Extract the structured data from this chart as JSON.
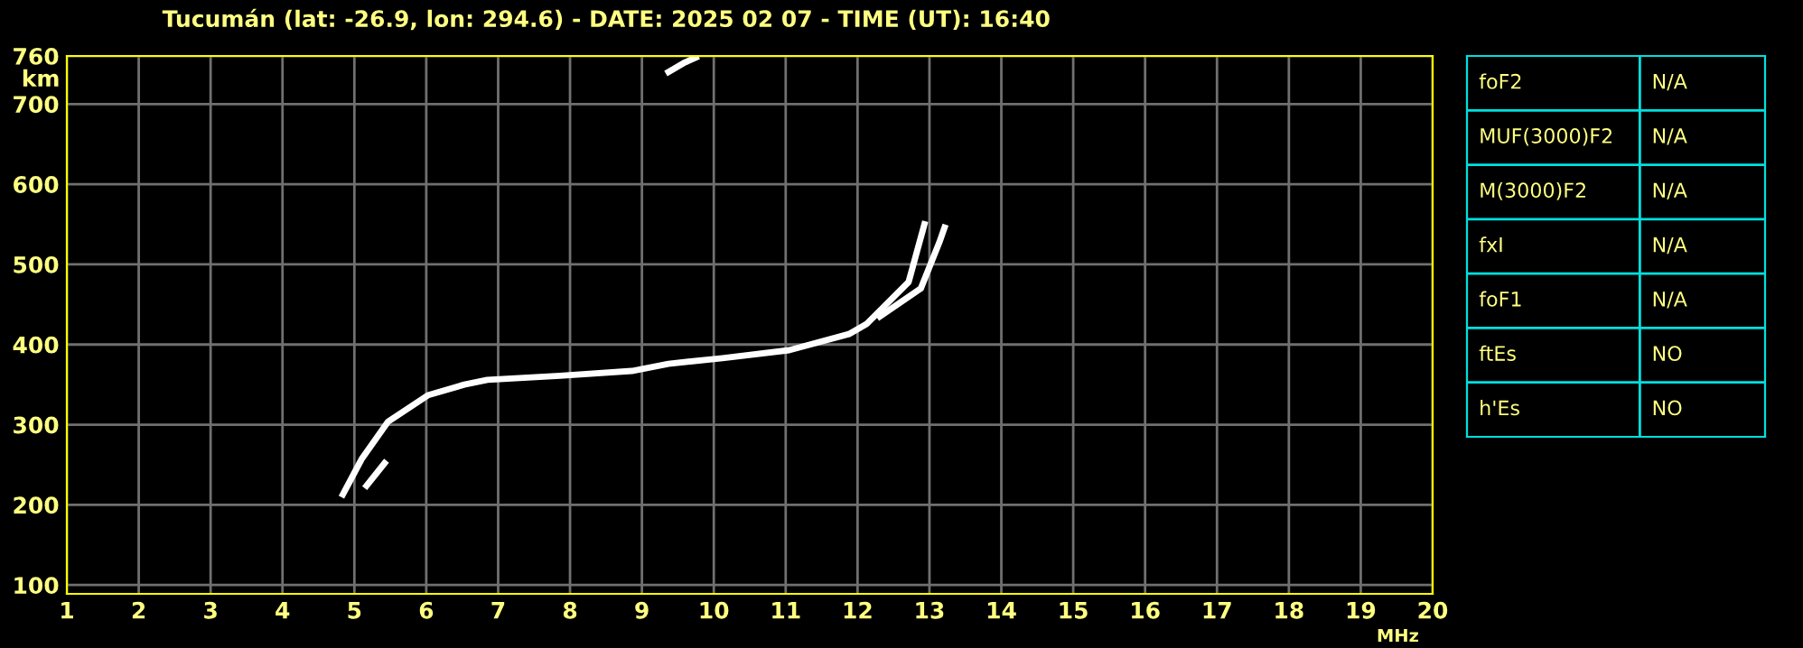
{
  "chart_data": [
    {
      "type": "line",
      "title": "Tucumán (lat: -26.9, lon: 294.6) - DATE: 2025 02 07 - TIME (UT): 16:40",
      "xlabel": "MHz",
      "ylabel": "km",
      "series": [
        {
          "color": "#ffffff",
          "x": [
            4.84,
            5.1,
            5.47,
            6.03,
            6.53,
            6.85,
            7.86,
            8.86,
            9.37,
            10.12,
            11.05,
            11.88,
            12.13,
            12.71,
            12.93
          ],
          "values": [
            213,
            257,
            304,
            337,
            350,
            356,
            361,
            367,
            376,
            383,
            393,
            413,
            426,
            478,
            550
          ]
        },
        {
          "color": "#ffffff",
          "x": [
            12.31,
            12.88,
            13.14,
            13.21
          ],
          "values": [
            435,
            470,
            528,
            546
          ]
        },
        {
          "color": "#ffffff",
          "x": [
            5.17,
            5.42
          ],
          "values": [
            224,
            252
          ]
        },
        {
          "color": "#ffffff",
          "x": [
            9.37,
            9.6,
            9.75
          ],
          "values": [
            740,
            752,
            758
          ]
        }
      ],
      "xlim": [
        1,
        20
      ],
      "ylim": [
        89,
        760
      ],
      "xticks": [
        1,
        2,
        3,
        4,
        5,
        6,
        7,
        8,
        9,
        10,
        11,
        12,
        13,
        14,
        15,
        16,
        17,
        18,
        19,
        20
      ],
      "yticks": [
        100,
        200,
        300,
        400,
        500,
        600,
        700,
        760
      ],
      "grid": true,
      "marker": "none",
      "line_style": "solid",
      "legend": false
    },
    {
      "type": "other",
      "annotations": [
        "foF2",
        "N/A",
        "MUF(3000)F2",
        "N/A",
        "M(3000)F2",
        "N/A",
        "fxI",
        "N/A",
        "foF1",
        "N/A",
        "ftEs",
        "NO",
        "h'Es",
        "NO"
      ]
    }
  ]
}
